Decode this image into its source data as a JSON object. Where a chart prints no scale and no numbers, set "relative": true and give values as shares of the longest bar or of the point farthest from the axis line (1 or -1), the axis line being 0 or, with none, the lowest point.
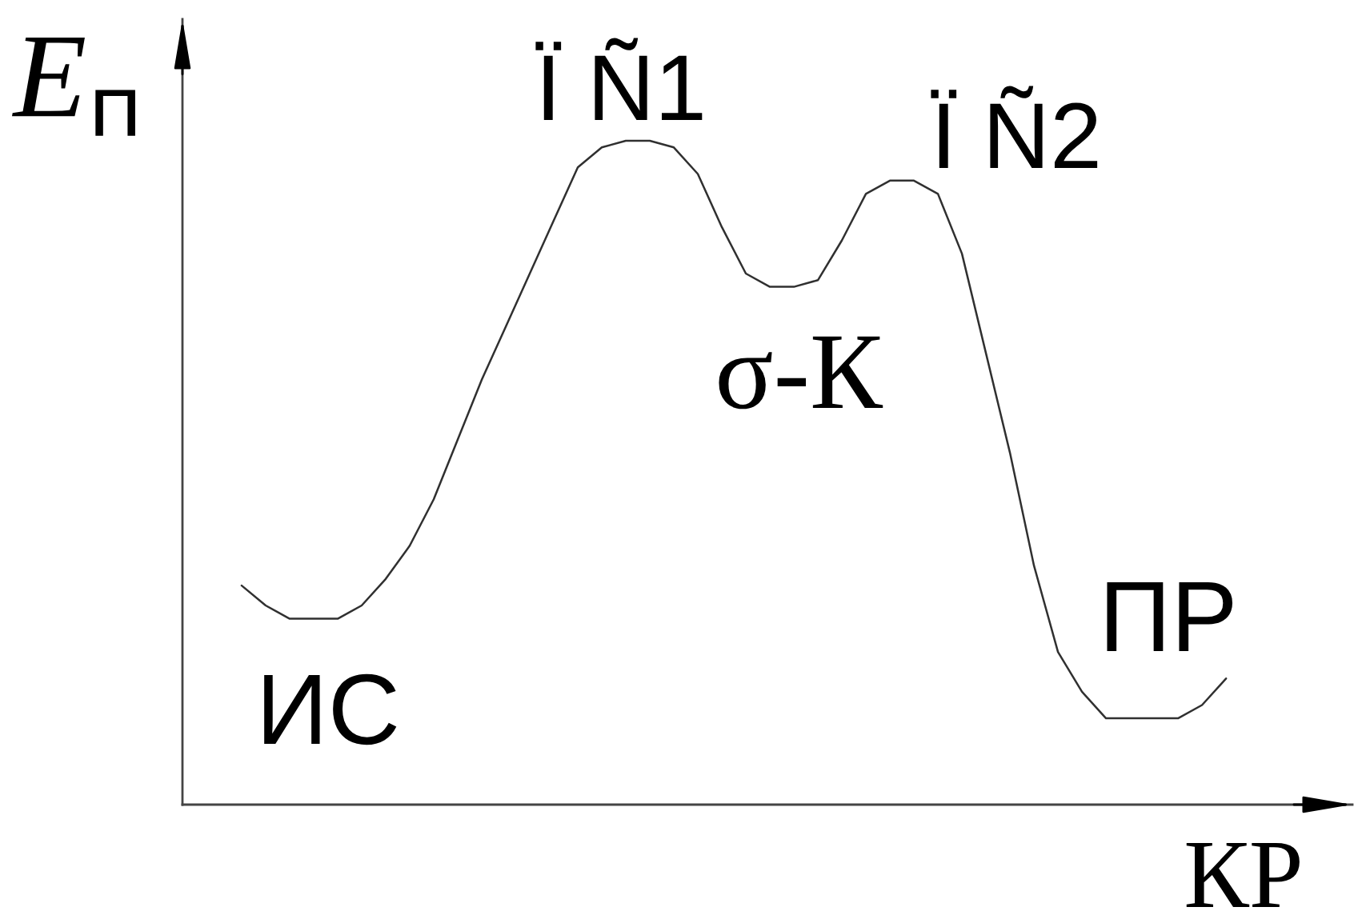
{
  "chart_data": {
    "type": "line",
    "relative": true,
    "categories": [
      null,
      null,
      null,
      null,
      null,
      null,
      null,
      null,
      null,
      null,
      null,
      null,
      null,
      null,
      null,
      null,
      null,
      null,
      null,
      null,
      null,
      null,
      null,
      null,
      null,
      null,
      null,
      null,
      null,
      null,
      null,
      null,
      null,
      null,
      null,
      null,
      null,
      null,
      null,
      null,
      null,
      null
    ],
    "series": [
      {
        "color": "#303030",
        "values": [
          0.33,
          0.3,
          0.28,
          0.28,
          0.28,
          0.3,
          0.34,
          0.39,
          0.46,
          0.55,
          0.64,
          0.72,
          0.8,
          0.88,
          0.96,
          0.99,
          1.0,
          1.0,
          0.99,
          0.95,
          0.87,
          0.8,
          0.78,
          0.78,
          0.79,
          0.85,
          0.92,
          0.94,
          0.94,
          0.92,
          0.83,
          0.68,
          0.53,
          0.36,
          0.23,
          0.17,
          0.13,
          0.13,
          0.13,
          0.13,
          0.15,
          0.19
        ]
      }
    ],
    "line_style": "solid",
    "xlabel": "КР",
    "ylabel": "E$_{п}$",
    "annotations": [
      "Ï Ñ1",
      "Ï Ñ2",
      "σ-К",
      "ИС",
      "ПР"
    ]
  }
}
